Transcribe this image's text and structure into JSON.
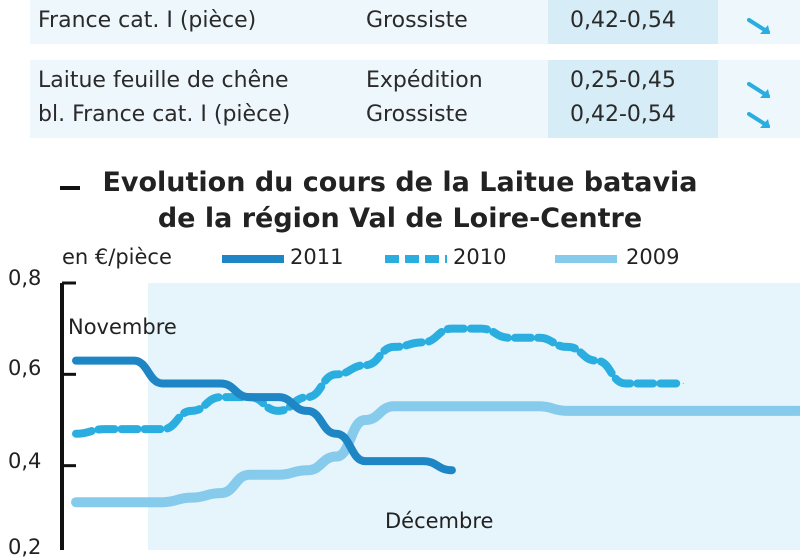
{
  "table": {
    "rows": [
      {
        "product_line2": "France cat. I (pièce)",
        "lines": [
          {
            "market": "Grossiste",
            "price": "0,42-0,54",
            "trend": "down-arrow-icon"
          }
        ]
      },
      {
        "product_line1": "Laitue feuille de chêne",
        "product_line2": "bl. France cat. I (pièce)",
        "lines": [
          {
            "market": "Expédition",
            "price": "0,25-0,45",
            "trend": "down-arrow-icon"
          },
          {
            "market": "Grossiste",
            "price": "0,42-0,54",
            "trend": "down-arrow-icon"
          }
        ]
      }
    ]
  },
  "colors": {
    "s2011": "#1e86c4",
    "s2010": "#2aaee0",
    "s2009": "#86cbec",
    "plot_bg": "#e6f4fb",
    "axis": "#111111",
    "band": "#eef7fc",
    "price_band": "#d6edf8"
  },
  "chart_data": {
    "type": "line",
    "title_line1": "Evolution du cours de la Laitue batavia",
    "title_line2": "de la région Val de Loire-Centre",
    "ylabel": "en €/pièce",
    "ylim": [
      0.2,
      0.8
    ],
    "yticks": [
      "0,8",
      "0,6",
      "0,4",
      "0,2"
    ],
    "yticks_values": [
      0.8,
      0.6,
      0.4,
      0.2
    ],
    "x_points": 25,
    "annotations": {
      "start": "Novembre",
      "end": "Décembre"
    },
    "legend_position": "top",
    "series": [
      {
        "name": "2011",
        "style": "solid",
        "values": [
          0.63,
          0.63,
          0.63,
          0.58,
          0.58,
          0.58,
          0.55,
          0.55,
          0.52,
          0.47,
          0.41,
          0.41,
          0.41,
          0.39
        ]
      },
      {
        "name": "2010",
        "style": "dashed",
        "values": [
          0.47,
          0.48,
          0.48,
          0.48,
          0.52,
          0.55,
          0.55,
          0.52,
          0.55,
          0.6,
          0.62,
          0.66,
          0.67,
          0.7,
          0.7,
          0.68,
          0.68,
          0.66,
          0.63,
          0.58,
          0.58,
          0.58
        ]
      },
      {
        "name": "2009",
        "style": "solid",
        "values": [
          0.32,
          0.32,
          0.32,
          0.32,
          0.33,
          0.34,
          0.38,
          0.38,
          0.39,
          0.42,
          0.5,
          0.53,
          0.53,
          0.53,
          0.53,
          0.53,
          0.53,
          0.52,
          0.52,
          0.52,
          0.52,
          0.52,
          0.52,
          0.52,
          0.52,
          0.52
        ]
      }
    ]
  }
}
